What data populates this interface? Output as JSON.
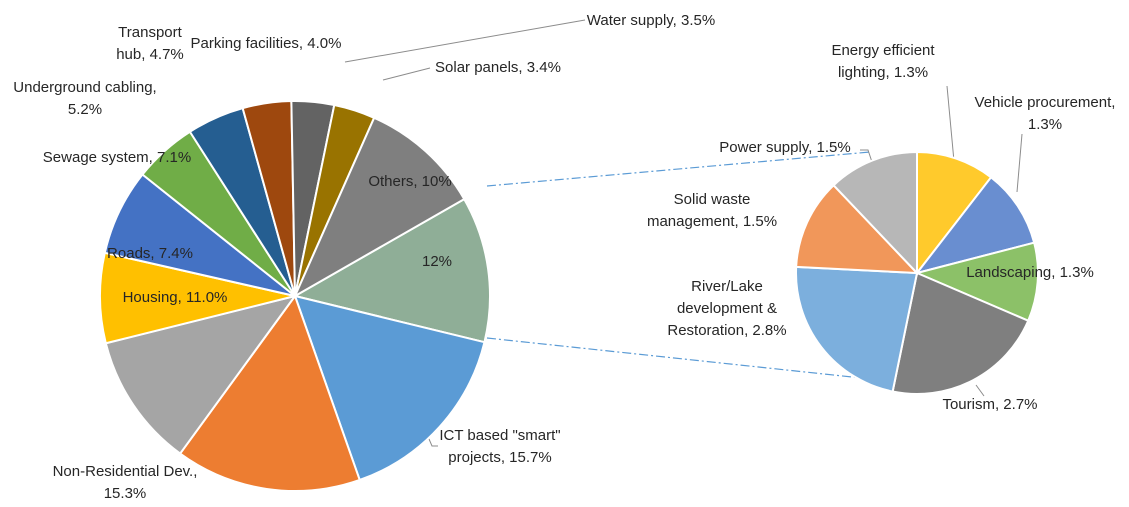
{
  "chart_data": [
    {
      "type": "pie",
      "values": [
        12,
        15.7,
        15.3,
        11.0,
        7.4,
        7.1,
        5.2,
        4.7,
        4.0,
        3.5,
        3.4,
        10
      ],
      "data_labels": [
        [
          "12%"
        ],
        [
          "ICT based \"smart\"",
          "projects, 15.7%"
        ],
        [
          "Non-Residential Dev.,",
          "15.3%"
        ],
        [
          "Housing, 11.0%"
        ],
        [
          "Roads, 7.4%"
        ],
        [
          "Sewage system, 7.1%"
        ],
        [
          "Underground cabling,",
          "5.2%"
        ],
        [
          "Transport",
          "hub, 4.7%"
        ],
        [
          "Parking facilities, 4.0%"
        ],
        [
          "Water supply, 3.5%"
        ],
        [
          "Solar panels, 3.4%"
        ],
        [
          "Others, 10%"
        ]
      ],
      "colors": [
        "#8fae97",
        "#5b9bd5",
        "#ed7d31",
        "#a5a5a5",
        "#ffc000",
        "#4472c4",
        "#70ad47",
        "#255e91",
        "#9e480e",
        "#636363",
        "#997300",
        "#7f7f7f"
      ]
    },
    {
      "type": "pie",
      "values": [
        1.3,
        1.3,
        1.3,
        2.7,
        2.8,
        1.5,
        1.5
      ],
      "data_labels": [
        [
          "Energy efficient",
          "lighting, 1.3%"
        ],
        [
          "Vehicle procurement,",
          "1.3%"
        ],
        [
          "Landscaping, 1.3%"
        ],
        [
          "Tourism, 2.7%"
        ],
        [
          "River/Lake",
          "development &",
          "Restoration, 2.8%"
        ],
        [
          "Solid waste",
          "management, 1.5%"
        ],
        [
          "Power supply, 1.5%"
        ]
      ],
      "colors": [
        "#ffca2c",
        "#698ed0",
        "#8cc168",
        "#7f7f7f",
        "#7cafdd",
        "#f1975a",
        "#b7b7b7"
      ]
    }
  ]
}
